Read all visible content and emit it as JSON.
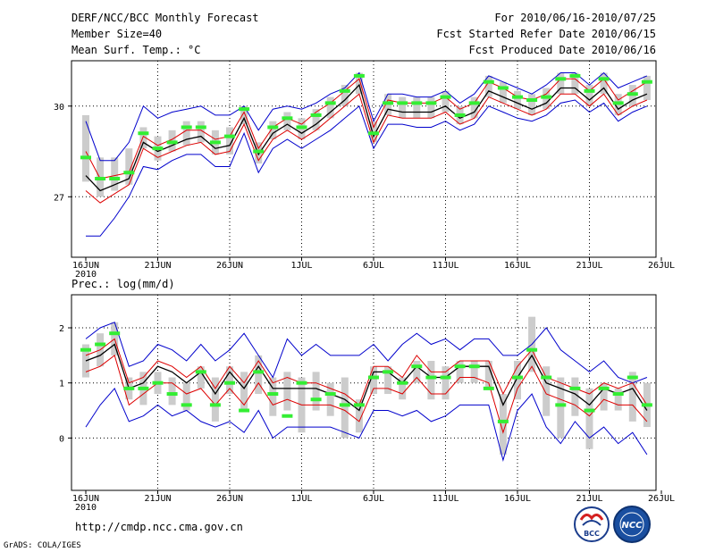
{
  "header": {
    "title": "DERF/NCC/BCC Monthly Forecast",
    "member_size": "Member Size=40",
    "variable_top": "Mean Surf. Temp.: °C",
    "forecast_range": "For 2010/06/16-2010/07/25",
    "started": "Fcst Started Refer Date 2010/06/15",
    "produced": "Fcst Produced Date 2010/06/16"
  },
  "footer": {
    "url": "http://cmdp.ncc.cma.gov.cn",
    "credit": "GrADS: COLA/IGES",
    "logo_left": "BCC",
    "logo_right": "NCC"
  },
  "colors": {
    "grid": "#000000",
    "box": "#cccccc",
    "median": "#33ee33",
    "mean": "#000000",
    "spread_inner": "#dd0000",
    "envelope": "#0000cc"
  },
  "chart_data": [
    {
      "type": "line",
      "title": "Mean Surf. Temp.: °C",
      "x_ticks": [
        "16JUN",
        "21JUN",
        "26JUN",
        "1JUL",
        "6JUL",
        "11JUL",
        "16JUL",
        "21JUL",
        "26JUL"
      ],
      "x_year": "2010",
      "y_ticks": [
        "27",
        "30"
      ],
      "ylim": [
        25,
        31.5
      ],
      "series": [
        {
          "name": "max",
          "values": [
            29.5,
            28.2,
            28.2,
            28.8,
            30,
            29.6,
            29.8,
            29.9,
            30,
            29.7,
            29.7,
            30,
            29.2,
            29.9,
            30,
            29.9,
            30.1,
            30.4,
            30.6,
            31.1,
            29.5,
            30.4,
            30.4,
            30.3,
            30.3,
            30.5,
            30.1,
            30.4,
            31,
            30.8,
            30.6,
            30.4,
            30.7,
            31.1,
            31.1,
            30.7,
            31.1,
            30.6,
            30.8,
            31
          ]
        },
        {
          "name": "upper",
          "values": [
            28.5,
            27.6,
            27.7,
            27.8,
            29,
            28.7,
            28.9,
            29.2,
            29.2,
            28.9,
            29,
            29.8,
            28.6,
            29.3,
            29.6,
            29.4,
            29.8,
            30.1,
            30.5,
            30.9,
            29.3,
            30.2,
            30.1,
            30.1,
            30.1,
            30.3,
            29.9,
            30.1,
            30.8,
            30.6,
            30.3,
            30.2,
            30.4,
            30.9,
            30.9,
            30.5,
            30.9,
            30.2,
            30.5,
            30.8
          ]
        },
        {
          "name": "mean",
          "values": [
            27.7,
            27.2,
            27.4,
            27.6,
            28.8,
            28.5,
            28.7,
            28.9,
            29,
            28.6,
            28.7,
            29.6,
            28.4,
            29.1,
            29.4,
            29.1,
            29.4,
            29.8,
            30.2,
            30.7,
            29,
            29.9,
            29.8,
            29.8,
            29.8,
            30,
            29.6,
            29.8,
            30.5,
            30.3,
            30.1,
            29.9,
            30.1,
            30.6,
            30.6,
            30.2,
            30.6,
            29.9,
            30.2,
            30.4
          ]
        },
        {
          "name": "lower",
          "values": [
            27.2,
            26.8,
            27.1,
            27.4,
            28.6,
            28.3,
            28.5,
            28.7,
            28.8,
            28.4,
            28.5,
            29.4,
            28.2,
            28.9,
            29.2,
            28.9,
            29.2,
            29.6,
            30,
            30.4,
            28.8,
            29.7,
            29.6,
            29.6,
            29.6,
            29.8,
            29.4,
            29.6,
            30.3,
            30.1,
            29.9,
            29.7,
            29.9,
            30.4,
            30.4,
            30,
            30.4,
            29.7,
            30,
            30.2
          ]
        },
        {
          "name": "min",
          "values": [
            25.7,
            25.7,
            26.3,
            27,
            28,
            27.9,
            28.2,
            28.4,
            28.4,
            28,
            28,
            29.1,
            27.8,
            28.6,
            28.9,
            28.6,
            28.9,
            29.2,
            29.6,
            30,
            28.6,
            29.4,
            29.4,
            29.3,
            29.3,
            29.5,
            29.2,
            29.4,
            30,
            29.8,
            29.6,
            29.5,
            29.7,
            30.1,
            30.2,
            29.8,
            30.1,
            29.5,
            29.8,
            30
          ]
        },
        {
          "name": "median",
          "values": [
            28.3,
            27.6,
            27.6,
            27.8,
            29.1,
            28.6,
            28.8,
            29.3,
            29.3,
            28.8,
            29,
            29.9,
            28.5,
            29.3,
            29.6,
            29.3,
            29.7,
            30.1,
            30.5,
            31,
            29.1,
            30.1,
            30.1,
            30.1,
            30.1,
            30.3,
            29.7,
            30.1,
            30.8,
            30.6,
            30.3,
            30.2,
            30.3,
            30.9,
            31,
            30.5,
            30.9,
            30.1,
            30.4,
            30.8
          ]
        }
      ],
      "box_low": [
        27.5,
        27,
        27.2,
        27.4,
        28.6,
        28.2,
        28.5,
        28.7,
        28.8,
        28.4,
        28.4,
        29.4,
        28.1,
        28.9,
        29.2,
        28.9,
        29.2,
        29.6,
        30,
        30.4,
        28.8,
        29.7,
        29.6,
        29.6,
        29.6,
        29.8,
        29.4,
        29.6,
        30.3,
        30.1,
        29.9,
        29.7,
        29.9,
        30.4,
        30.4,
        30,
        30.4,
        29.7,
        30,
        30.2
      ],
      "box_high": [
        29.7,
        28.3,
        28.3,
        28.6,
        29.3,
        29,
        29.2,
        29.5,
        29.5,
        29.2,
        29.3,
        30,
        28.8,
        29.5,
        29.8,
        29.6,
        29.9,
        30.3,
        30.7,
        31.1,
        29.5,
        30.4,
        30.3,
        30.3,
        30.3,
        30.5,
        30,
        30.3,
        31,
        30.8,
        30.5,
        30.4,
        30.6,
        31.1,
        31.1,
        30.7,
        31.1,
        30.4,
        30.7,
        31
      ]
    },
    {
      "type": "line",
      "title": "Prec.: log(mm/d)",
      "x_ticks": [
        "16JUN",
        "21JUN",
        "26JUN",
        "1JUL",
        "6JUL",
        "11JUL",
        "16JUL",
        "21JUL",
        "26JUL"
      ],
      "x_year": "2010",
      "y_ticks": [
        "0",
        "1",
        "2"
      ],
      "ylim": [
        -0.95,
        2.6
      ],
      "series": [
        {
          "name": "max",
          "values": [
            1.8,
            2,
            2.1,
            1.3,
            1.4,
            1.7,
            1.6,
            1.4,
            1.7,
            1.4,
            1.6,
            1.9,
            1.5,
            1.1,
            1.8,
            1.5,
            1.7,
            1.5,
            1.5,
            1.5,
            1.7,
            1.4,
            1.7,
            1.9,
            1.7,
            1.8,
            1.6,
            1.8,
            1.8,
            1.5,
            1.5,
            1.7,
            2,
            1.6,
            1.4,
            1.2,
            1.4,
            1.1,
            1,
            1.1
          ]
        },
        {
          "name": "upper",
          "values": [
            1.5,
            1.6,
            1.8,
            1,
            1.1,
            1.4,
            1.3,
            1.1,
            1.3,
            0.9,
            1.3,
            1,
            1.4,
            1,
            1.1,
            1,
            1,
            0.9,
            0.8,
            0.6,
            1.3,
            1.3,
            1.1,
            1.5,
            1.2,
            1.2,
            1.4,
            1.4,
            1.4,
            0.8,
            1.3,
            1.6,
            1.1,
            1,
            0.9,
            0.8,
            1,
            0.9,
            1,
            0.6
          ]
        },
        {
          "name": "mean",
          "values": [
            1.4,
            1.5,
            1.7,
            0.9,
            1,
            1.3,
            1.2,
            1,
            1.2,
            0.8,
            1.2,
            0.9,
            1.3,
            0.9,
            0.9,
            0.9,
            0.9,
            0.8,
            0.7,
            0.5,
            1.2,
            1.2,
            1,
            1.3,
            1.1,
            1.1,
            1.3,
            1.3,
            1.3,
            0.6,
            1.1,
            1.5,
            1,
            0.9,
            0.8,
            0.6,
            0.9,
            0.8,
            0.9,
            0.5
          ]
        },
        {
          "name": "lower",
          "values": [
            1.2,
            1.3,
            1.5,
            0.6,
            0.8,
            1,
            1,
            0.8,
            0.9,
            0.6,
            0.9,
            0.6,
            1,
            0.6,
            0.7,
            0.6,
            0.6,
            0.6,
            0.5,
            0.3,
            0.9,
            0.9,
            0.8,
            1.1,
            0.8,
            0.8,
            1.1,
            1.1,
            1,
            0.1,
            0.9,
            1.3,
            0.8,
            0.7,
            0.6,
            0.4,
            0.7,
            0.6,
            0.6,
            0.3
          ]
        },
        {
          "name": "min",
          "values": [
            0.2,
            0.6,
            0.9,
            0.3,
            0.4,
            0.6,
            0.4,
            0.5,
            0.3,
            0.2,
            0.3,
            0.1,
            0.5,
            0,
            0.2,
            0.2,
            0.2,
            0.2,
            0.1,
            0,
            0.5,
            0.5,
            0.4,
            0.5,
            0.3,
            0.4,
            0.6,
            0.6,
            0.6,
            -0.4,
            0.5,
            0.8,
            0.2,
            -0.1,
            0.3,
            0,
            0.2,
            -0.1,
            0.1,
            -0.3
          ]
        },
        {
          "name": "median",
          "values": [
            1.6,
            1.7,
            1.9,
            0.9,
            0.9,
            1,
            0.8,
            0.6,
            1.2,
            0.6,
            1,
            0.5,
            1.2,
            0.8,
            0.4,
            1,
            0.7,
            0.8,
            0.6,
            0.6,
            1.1,
            1.2,
            1,
            1.3,
            1.1,
            1.1,
            1.3,
            1.3,
            0.9,
            0.3,
            1.1,
            1.6,
            1.1,
            0.6,
            0.9,
            0.5,
            0.9,
            0.8,
            1.1,
            0.6
          ]
        }
      ],
      "box_low": [
        1.1,
        1.3,
        1.5,
        0.7,
        0.6,
        0.8,
        0.6,
        0.5,
        0.9,
        0.3,
        0.8,
        0.5,
        0.8,
        0.4,
        0.5,
        0.1,
        0.5,
        0.4,
        0,
        0.1,
        0.8,
        0.8,
        0.7,
        1,
        0.7,
        0.7,
        1,
        1,
        0.9,
        -0.3,
        0.7,
        1.2,
        0.4,
        0,
        0.4,
        -0.2,
        0.5,
        0.5,
        0.3,
        0.2
      ],
      "box_high": [
        1.7,
        1.9,
        2.1,
        1.1,
        1.2,
        1.2,
        1.1,
        1,
        1.3,
        1.1,
        1.3,
        1.2,
        1.5,
        1.1,
        1.2,
        1.1,
        1.2,
        1,
        1.1,
        0.7,
        1.3,
        1.3,
        1.1,
        1.4,
        1.4,
        1.3,
        1.4,
        1.4,
        1.4,
        0.8,
        1.4,
        2.2,
        1.3,
        1.1,
        1.1,
        0.9,
        1,
        0.9,
        1.2,
        1
      ]
    }
  ]
}
